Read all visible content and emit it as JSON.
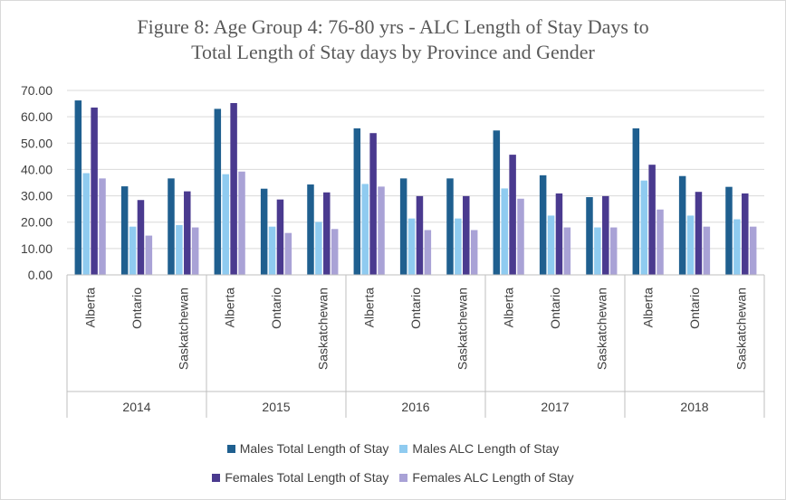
{
  "chart_data": {
    "type": "bar",
    "title_line1": "Figure 8: Age Group 4: 76-80 yrs - ALC Length of Stay Days to",
    "title_line2": "Total Length of Stay days by Province and Gender",
    "ylim": [
      0,
      70
    ],
    "yticks": [
      "0.00",
      "10.00",
      "20.00",
      "30.00",
      "40.00",
      "50.00",
      "60.00",
      "70.00"
    ],
    "years": [
      "2014",
      "2015",
      "2016",
      "2017",
      "2018"
    ],
    "provinces": [
      "Alberta",
      "Ontario",
      "Saskatchewan"
    ],
    "series": [
      {
        "name": "Males Total Length of Stay",
        "color": "#1f5f8f",
        "values": [
          66.2,
          33.6,
          36.6,
          63.0,
          32.7,
          34.3,
          55.6,
          36.6,
          36.6,
          54.8,
          37.8,
          29.5,
          55.6,
          37.5,
          33.4
        ]
      },
      {
        "name": "Males ALC Length of Stay",
        "color": "#8fcbf0",
        "values": [
          38.6,
          18.3,
          18.9,
          38.2,
          18.3,
          20.1,
          34.5,
          21.4,
          21.4,
          32.8,
          22.5,
          18.0,
          35.8,
          22.5,
          21.1
        ]
      },
      {
        "name": "Females Total Length of Stay",
        "color": "#4a3a8f",
        "values": [
          63.5,
          28.4,
          31.7,
          65.2,
          28.6,
          31.3,
          53.8,
          29.9,
          29.9,
          45.6,
          30.9,
          29.9,
          41.8,
          31.5,
          30.9
        ]
      },
      {
        "name": "Females ALC Length of Stay",
        "color": "#a9a2d6",
        "values": [
          36.6,
          14.9,
          18.0,
          39.2,
          15.9,
          17.4,
          33.5,
          17.0,
          17.0,
          28.9,
          18.0,
          18.0,
          24.8,
          18.3,
          18.3
        ]
      }
    ]
  }
}
